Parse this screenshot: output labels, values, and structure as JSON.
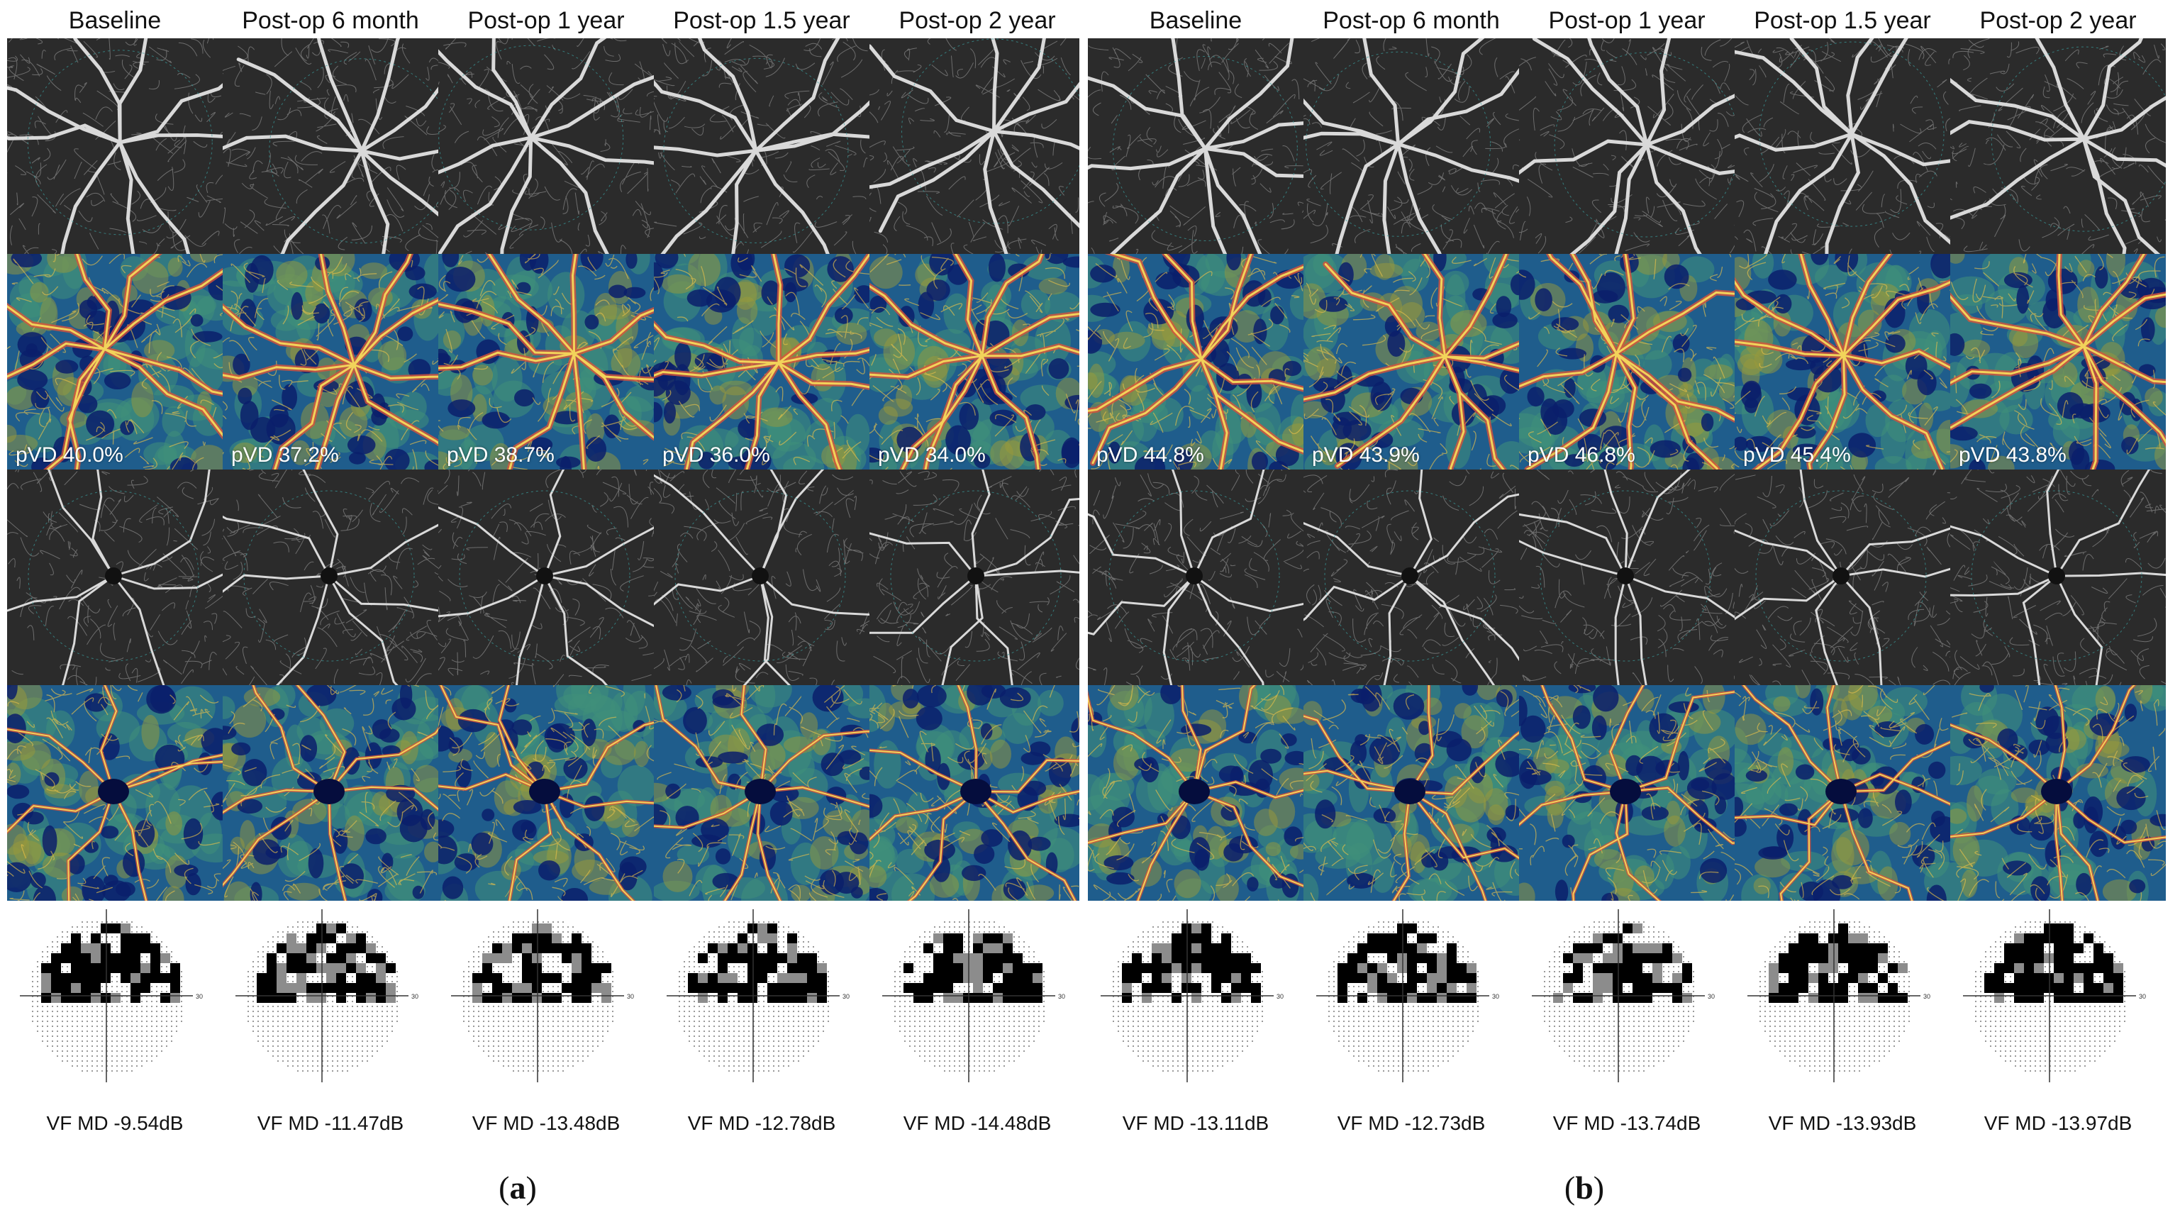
{
  "panels": [
    {
      "caption_open": "(",
      "caption_letter": "a",
      "caption_close": ")",
      "columns": [
        {
          "header": "Baseline",
          "pvd": "pVD 40.0%",
          "vfmd": "VF MD -9.54dB"
        },
        {
          "header": "Post-op 6 month",
          "pvd": "pVD 37.2%",
          "vfmd": "VF MD -11.47dB"
        },
        {
          "header": "Post-op 1 year",
          "pvd": "pVD 38.7%",
          "vfmd": "VF MD -13.48dB"
        },
        {
          "header": "Post-op 1.5 year",
          "pvd": "pVD 36.0%",
          "vfmd": "VF MD -12.78dB"
        },
        {
          "header": "Post-op 2 year",
          "pvd": "pVD 34.0%",
          "vfmd": "VF MD -14.48dB"
        }
      ]
    },
    {
      "caption_open": "(",
      "caption_letter": "b",
      "caption_close": ")",
      "columns": [
        {
          "header": "Baseline",
          "pvd": "pVD 44.8%",
          "vfmd": "VF MD -13.11dB"
        },
        {
          "header": "Post-op 6 month",
          "pvd": "pVD 43.9%",
          "vfmd": "VF MD -12.73dB"
        },
        {
          "header": "Post-op 1 year",
          "pvd": "pVD 46.8%",
          "vfmd": "VF MD -13.74dB"
        },
        {
          "header": "Post-op 1.5 year",
          "pvd": "pVD 45.4%",
          "vfmd": "VF MD -13.93dB"
        },
        {
          "header": "Post-op 2 year",
          "pvd": "pVD 43.8%",
          "vfmd": "VF MD -13.97dB"
        }
      ]
    }
  ],
  "vf_axis_label": "30",
  "colors": {
    "gray_tile_bg": "#2b2b2b",
    "vessel_gray": "#d9d9d9",
    "heat_bg": "#1f5d8c",
    "heat_dark": "#0b1f6b",
    "heat_vessel": "#f2d35a",
    "heat_hot": "#d9533a",
    "vf_black": "#000000",
    "vf_gray": "#8c8c8c",
    "vf_dots": "#9a9a9a"
  }
}
